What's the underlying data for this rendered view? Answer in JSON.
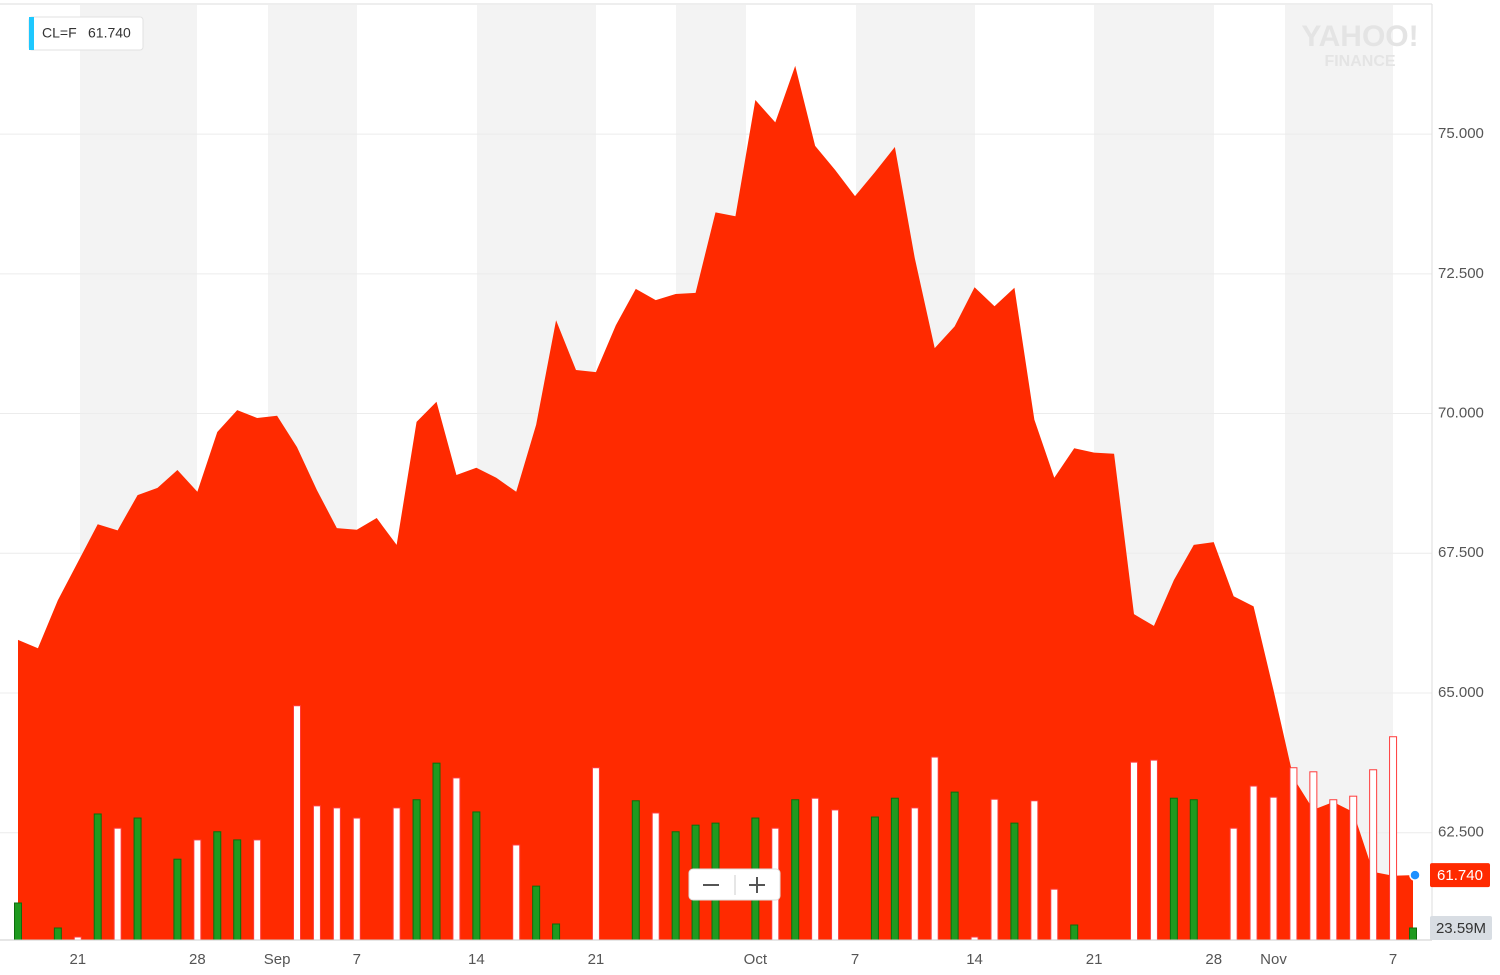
{
  "chart_data": {
    "type": "area",
    "last_label": "61.740",
    "last_volume_label": "23.59M",
    "watermark": [
      "YAHOO!",
      "FINANCE"
    ],
    "legend": "top-left",
    "grid": true,
    "categories": [
      null,
      null,
      null,
      "21",
      null,
      null,
      null,
      null,
      null,
      "28",
      null,
      null,
      null,
      "Sep",
      null,
      null,
      null,
      "7",
      null,
      null,
      null,
      null,
      null,
      "14",
      null,
      null,
      null,
      null,
      null,
      "21",
      null,
      null,
      null,
      null,
      null,
      null,
      null,
      "Oct",
      null,
      null,
      null,
      null,
      "7",
      null,
      null,
      null,
      null,
      null,
      "14",
      null,
      null,
      null,
      null,
      null,
      "21",
      null,
      null,
      null,
      null,
      null,
      "28",
      null,
      null,
      "Nov",
      null,
      null,
      null,
      null,
      null,
      "7",
      null
    ],
    "series": [
      {
        "name": "CL=F",
        "color": "#ff2a00",
        "values": [
          65.95,
          65.8,
          66.66,
          67.34,
          68.02,
          67.91,
          68.54,
          68.67,
          68.99,
          68.6,
          69.67,
          70.06,
          69.92,
          69.96,
          69.4,
          68.63,
          67.95,
          67.92,
          68.13,
          67.65,
          69.85,
          70.21,
          68.9,
          69.03,
          68.85,
          68.6,
          69.8,
          71.67,
          70.78,
          70.74,
          71.58,
          72.23,
          72.03,
          72.14,
          72.16,
          73.6,
          73.53,
          75.61,
          75.21,
          76.22,
          74.79,
          74.36,
          73.89,
          74.32,
          74.77,
          72.78,
          71.17,
          71.56,
          72.26,
          71.92,
          72.25,
          69.89,
          68.85,
          69.38,
          69.3,
          69.28,
          66.41,
          66.2,
          67.02,
          67.65,
          67.7,
          66.73,
          66.55,
          65.05,
          63.48,
          62.91,
          63.05,
          62.87,
          61.8,
          61.73,
          61.74
        ]
      }
    ],
    "volume": {
      "lim": [
        0,
        1840
      ],
      "up_color": "#1f9a1f",
      "down_color": "#ff3b3b",
      "values": [
        72.8,
        null,
        23.6,
        5.9,
        248,
        220,
        240,
        null,
        159,
        197,
        213,
        197,
        197,
        null,
        461,
        264,
        260,
        240,
        null,
        260,
        276,
        348,
        319,
        252,
        null,
        187,
        106,
        31.5,
        null,
        339,
        null,
        274,
        250,
        213,
        226,
        230,
        null,
        240,
        220,
        276,
        279,
        256,
        null,
        242,
        279,
        260,
        360,
        291,
        5.9,
        277,
        230,
        274,
        100,
        29.5,
        null,
        null,
        350,
        354,
        279,
        276,
        null,
        220,
        303,
        281,
        339,
        331,
        276,
        283,
        335,
        400,
        23.59
      ],
      "up": [
        true,
        null,
        true,
        false,
        true,
        false,
        true,
        null,
        true,
        false,
        true,
        true,
        false,
        null,
        false,
        false,
        false,
        false,
        null,
        false,
        true,
        true,
        false,
        true,
        null,
        false,
        true,
        true,
        null,
        false,
        null,
        true,
        false,
        true,
        true,
        true,
        null,
        true,
        false,
        true,
        false,
        false,
        null,
        true,
        true,
        false,
        false,
        true,
        false,
        false,
        true,
        false,
        false,
        true,
        null,
        null,
        false,
        false,
        true,
        true,
        null,
        false,
        false,
        false,
        false,
        false,
        false,
        false,
        false,
        false,
        true
      ]
    },
    "ylim": [
      60.58,
      77.31
    ],
    "yticks": [
      {
        "value": 62.5,
        "label": "62.500"
      },
      {
        "value": 65,
        "label": "65.000"
      },
      {
        "value": 67.5,
        "label": "67.500"
      },
      {
        "value": 70,
        "label": "70.000"
      },
      {
        "value": 72.5,
        "label": "72.500"
      },
      {
        "value": 75,
        "label": "75.000"
      }
    ]
  }
}
